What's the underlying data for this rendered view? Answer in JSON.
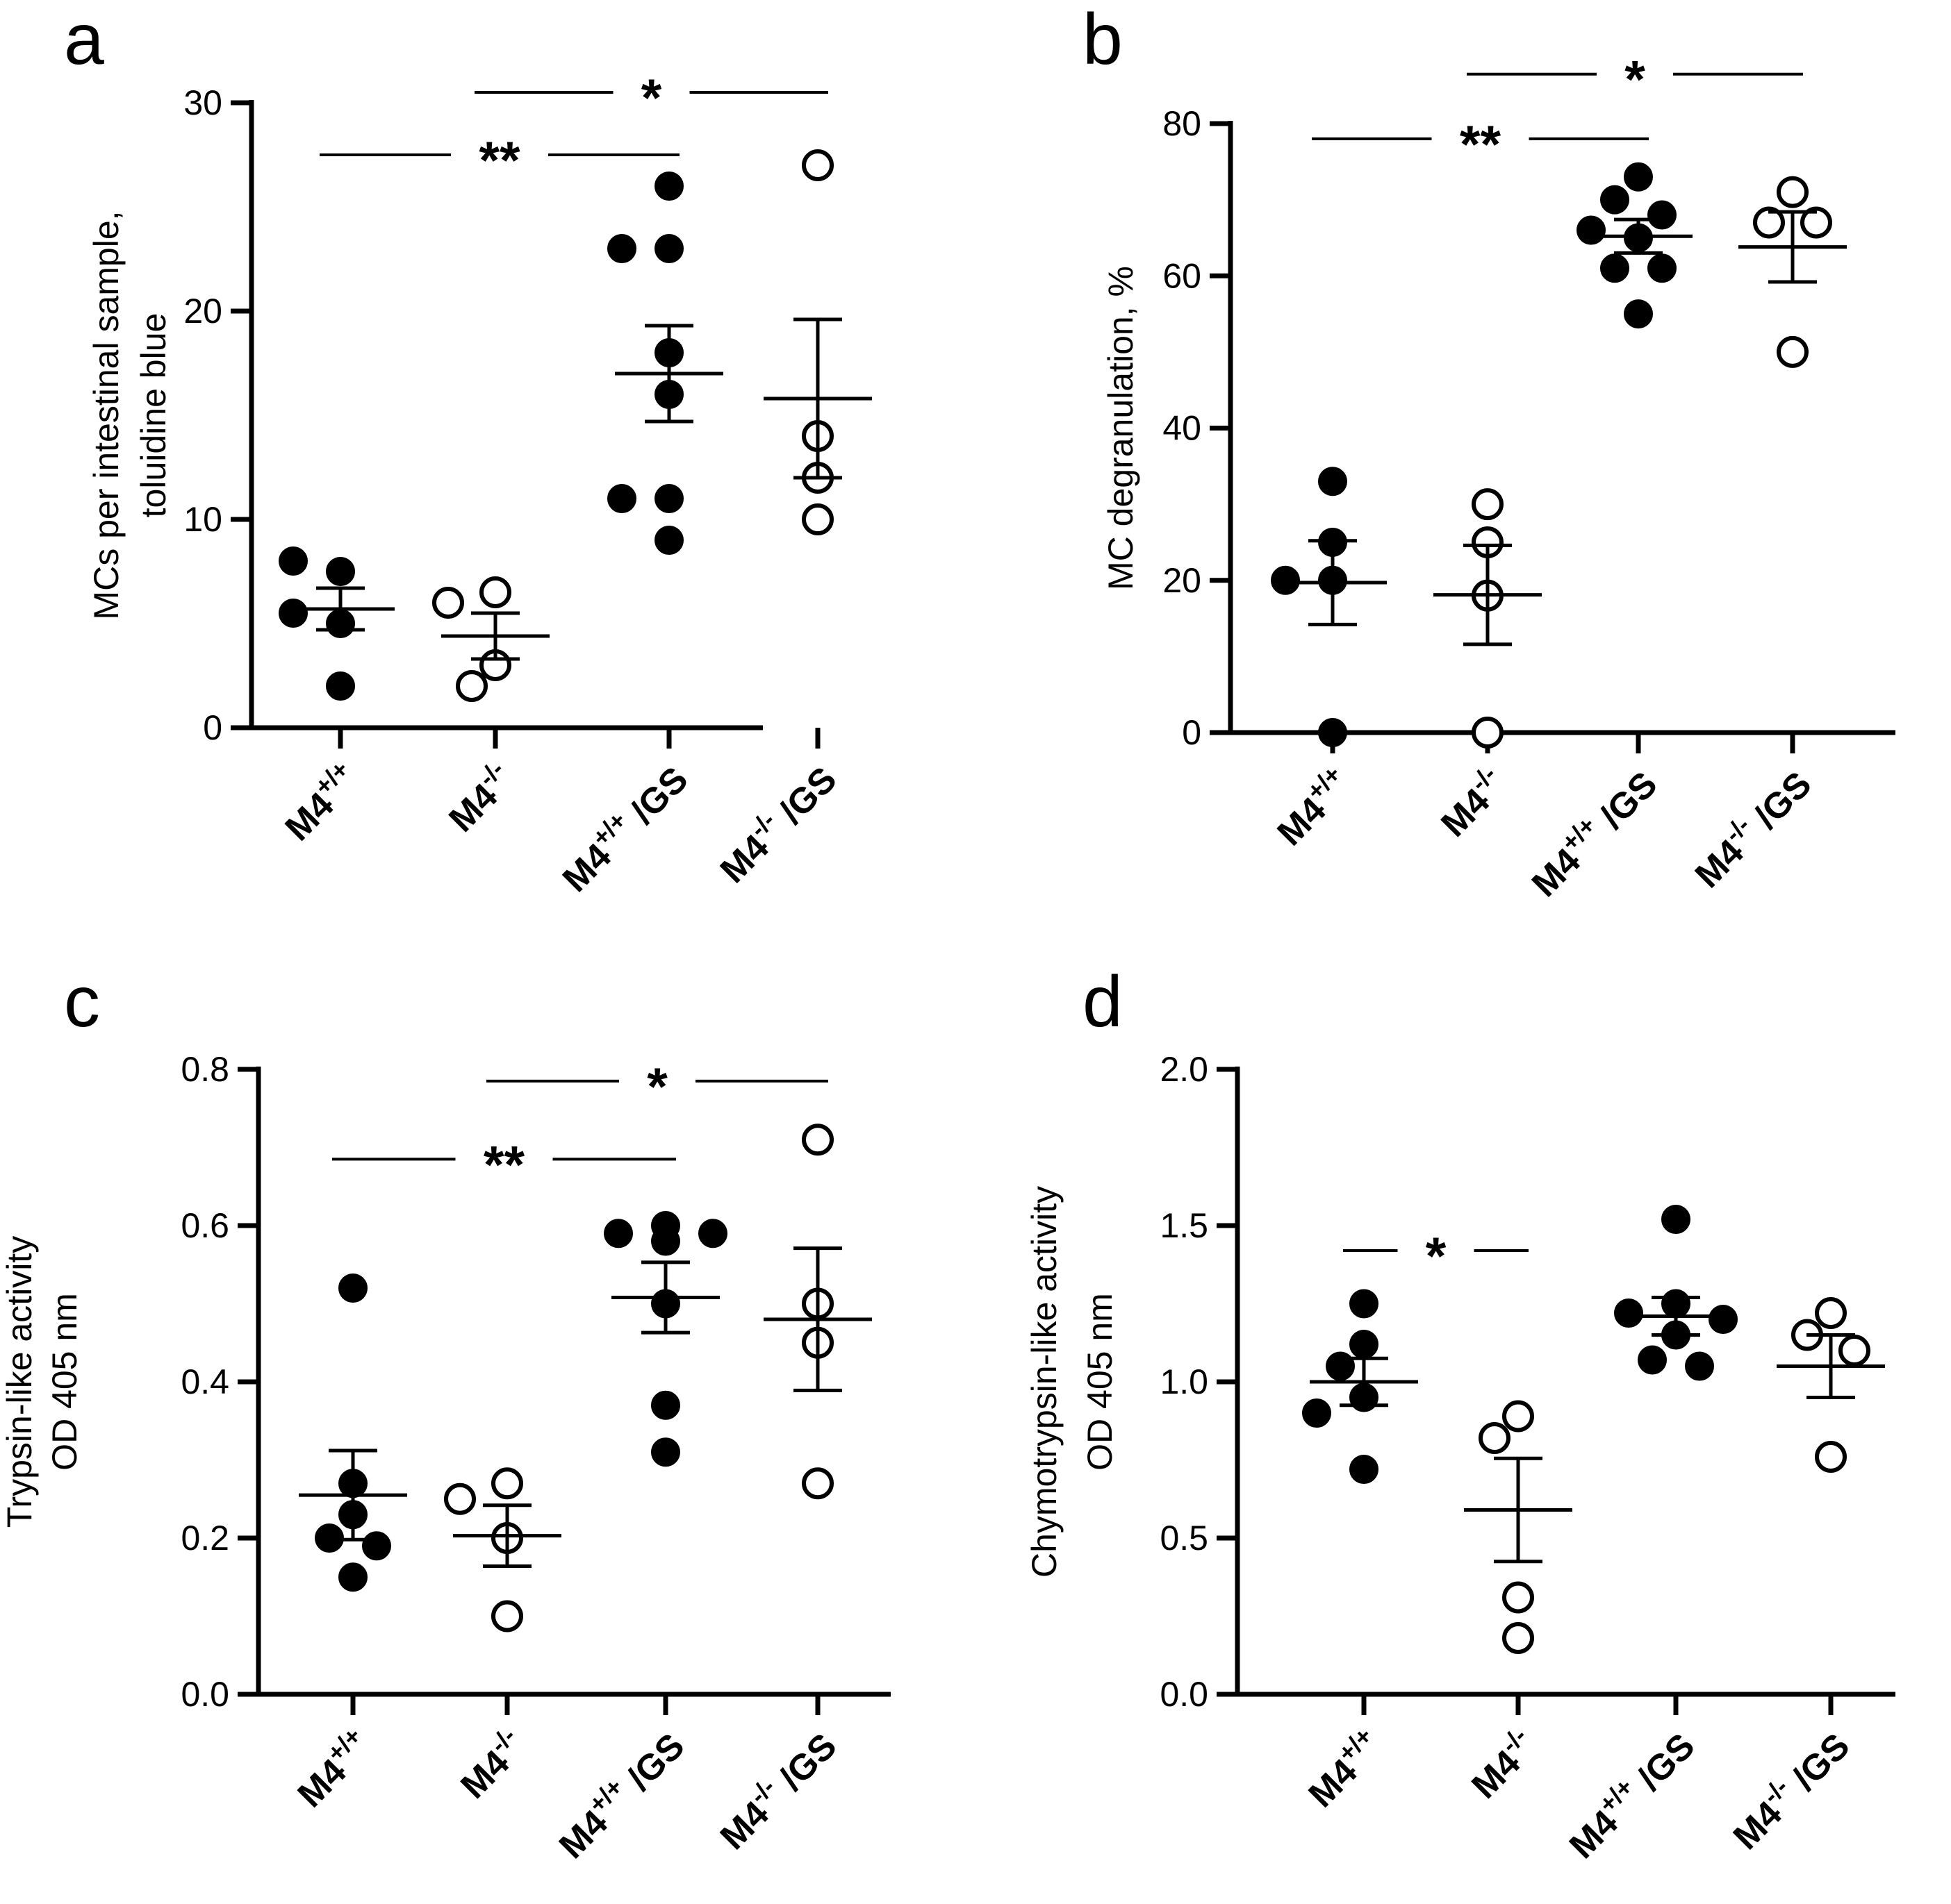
{
  "chart_data": [
    {
      "type": "scatter",
      "panel": "a",
      "ylabel": [
        "MCs per intestinal sample,",
        "toluidine blue"
      ],
      "ylim": [
        0,
        30
      ],
      "yticks": [
        0,
        10,
        20,
        30
      ],
      "ytick_labels": [
        "0",
        "10",
        "20",
        "30"
      ],
      "categories": [
        {
          "base": "M4",
          "sup": "+/+",
          "suffix": ""
        },
        {
          "base": "M4",
          "sup": "-/-",
          "suffix": ""
        },
        {
          "base": "M4",
          "sup": "+/+",
          "suffix": " /GS"
        },
        {
          "base": "M4",
          "sup": "-/-",
          "suffix": " /GS"
        }
      ],
      "groups": [
        {
          "filled": true,
          "points": [
            7.5,
            8.0,
            5.0,
            2.0,
            5.5
          ],
          "mean": 5.7,
          "sem": 1.0
        },
        {
          "filled": false,
          "points": [
            6.5,
            6.0,
            3.0,
            2.0
          ],
          "mean": 4.4,
          "sem": 1.1
        },
        {
          "filled": true,
          "points": [
            26,
            23,
            23,
            18,
            16,
            11,
            11,
            9
          ],
          "mean": 17.0,
          "sem": 2.3
        },
        {
          "filled": false,
          "points": [
            27,
            14,
            12,
            10
          ],
          "mean": 15.8,
          "sem": 3.8
        }
      ],
      "significance": [
        {
          "from": 0,
          "to": 2,
          "label": "**",
          "y": 27.5
        },
        {
          "from": 1,
          "to": 3,
          "label": "*",
          "y": 30.5
        }
      ]
    },
    {
      "type": "scatter",
      "panel": "b",
      "ylabel": [
        "MC degranulation, %"
      ],
      "ylim": [
        0,
        80
      ],
      "yticks": [
        0,
        20,
        40,
        60,
        80
      ],
      "ytick_labels": [
        "0",
        "20",
        "40",
        "60",
        "80"
      ],
      "categories": [
        {
          "base": "M4",
          "sup": "+/+",
          "suffix": ""
        },
        {
          "base": "M4",
          "sup": "-/-",
          "suffix": ""
        },
        {
          "base": "M4",
          "sup": "+/+",
          "suffix": " /GS"
        },
        {
          "base": "M4",
          "sup": "-/-",
          "suffix": " /GS"
        }
      ],
      "groups": [
        {
          "filled": true,
          "points": [
            33,
            25,
            20,
            20,
            0
          ],
          "mean": 19.7,
          "sem": 5.5
        },
        {
          "filled": false,
          "points": [
            30,
            25,
            18,
            0
          ],
          "mean": 18.1,
          "sem": 6.5
        },
        {
          "filled": true,
          "points": [
            73,
            70,
            68,
            66,
            65,
            61,
            61,
            55
          ],
          "mean": 65.2,
          "sem": 2.2
        },
        {
          "filled": false,
          "points": [
            71,
            67,
            67,
            50
          ],
          "mean": 63.8,
          "sem": 4.6
        }
      ],
      "significance": [
        {
          "from": 0,
          "to": 2,
          "label": "**",
          "y": 78.0
        },
        {
          "from": 1,
          "to": 3,
          "label": "*",
          "y": 86.5
        }
      ]
    },
    {
      "type": "scatter",
      "panel": "c",
      "ylabel": [
        "Trypsin-like activity",
        "OD 405 nm"
      ],
      "ylim": [
        0,
        0.8
      ],
      "yticks": [
        0,
        0.2,
        0.4,
        0.6,
        0.8
      ],
      "ytick_labels": [
        "0.0",
        "0.2",
        "0.4",
        "0.6",
        "0.8"
      ],
      "categories": [
        {
          "base": "M4",
          "sup": "+/+",
          "suffix": ""
        },
        {
          "base": "M4",
          "sup": "-/-",
          "suffix": ""
        },
        {
          "base": "M4",
          "sup": "+/+",
          "suffix": " /GS"
        },
        {
          "base": "M4",
          "sup": "-/-",
          "suffix": " /GS"
        }
      ],
      "groups": [
        {
          "filled": true,
          "points": [
            0.52,
            0.27,
            0.23,
            0.2,
            0.19,
            0.15
          ],
          "mean": 0.255,
          "sem": 0.057
        },
        {
          "filled": false,
          "points": [
            0.27,
            0.25,
            0.2,
            0.1
          ],
          "mean": 0.203,
          "sem": 0.039
        },
        {
          "filled": true,
          "points": [
            0.6,
            0.59,
            0.59,
            0.58,
            0.5,
            0.37,
            0.31
          ],
          "mean": 0.508,
          "sem": 0.045
        },
        {
          "filled": false,
          "points": [
            0.71,
            0.5,
            0.45,
            0.27
          ],
          "mean": 0.48,
          "sem": 0.091
        }
      ],
      "significance": [
        {
          "from": 0,
          "to": 2,
          "label": "**",
          "y": 0.685
        },
        {
          "from": 1,
          "to": 3,
          "label": "*",
          "y": 0.785
        }
      ]
    },
    {
      "type": "scatter",
      "panel": "d",
      "ylabel": [
        "Chymotrypsin-like activity",
        "OD 405 nm"
      ],
      "ylim": [
        0,
        2.0
      ],
      "yticks": [
        0,
        0.5,
        1.0,
        1.5,
        2.0
      ],
      "ytick_labels": [
        "0.0",
        "0.5",
        "1.0",
        "1.5",
        "2.0"
      ],
      "categories": [
        {
          "base": "M4",
          "sup": "+/+",
          "suffix": ""
        },
        {
          "base": "M4",
          "sup": "-/-",
          "suffix": ""
        },
        {
          "base": "M4",
          "sup": "+/+",
          "suffix": " /GS"
        },
        {
          "base": "M4",
          "sup": "-/-",
          "suffix": " /GS"
        }
      ],
      "groups": [
        {
          "filled": true,
          "points": [
            1.25,
            1.12,
            1.05,
            0.95,
            0.9,
            0.72
          ],
          "mean": 1.0,
          "sem": 0.075
        },
        {
          "filled": false,
          "points": [
            0.89,
            0.82,
            0.31,
            0.18
          ],
          "mean": 0.59,
          "sem": 0.165
        },
        {
          "filled": true,
          "points": [
            1.52,
            1.25,
            1.22,
            1.2,
            1.15,
            1.07,
            1.05
          ],
          "mean": 1.21,
          "sem": 0.06
        },
        {
          "filled": false,
          "points": [
            1.22,
            1.15,
            1.1,
            0.76
          ],
          "mean": 1.05,
          "sem": 0.1
        }
      ],
      "significance": [
        {
          "from": 0,
          "to": 1,
          "label": "*",
          "y": 1.42
        }
      ]
    }
  ]
}
